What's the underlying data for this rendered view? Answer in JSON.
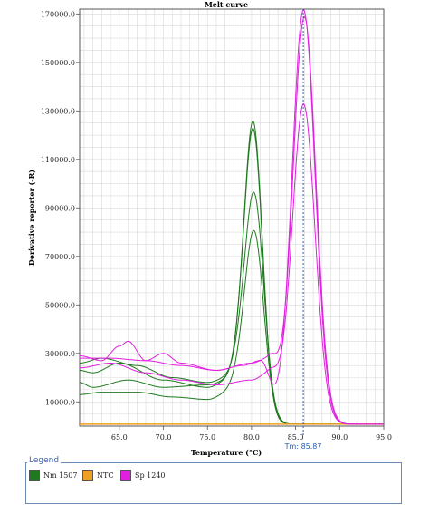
{
  "chart_data": {
    "type": "line",
    "title": "Melt curve",
    "xlabel": "Temperature (°C)",
    "ylabel": "Derivative reporter (-R)",
    "xlim": [
      60.5,
      95.0
    ],
    "ylim": [
      0,
      172000
    ],
    "xticks": [
      "65.0",
      "70.0",
      "75.0",
      "80.0",
      "85.0",
      "90.0",
      "95.0"
    ],
    "yticks": [
      "10000.0",
      "30000.0",
      "50000.0",
      "70000.0",
      "90000.0",
      "110000.0",
      "130000.0",
      "150000.0",
      "170000.0"
    ],
    "grid": true,
    "tm_marker": {
      "x": 85.87,
      "label": "Tm: 85.87"
    },
    "series": [
      {
        "name": "Nm 1507",
        "color": "#1f7a1f",
        "curves": [
          {
            "peak": 122000,
            "center": 80.2,
            "width": 1.05,
            "base": [
              [
                60.5,
                18000
              ],
              [
                62,
                16000
              ],
              [
                66,
                19000
              ],
              [
                70,
                16000
              ],
              [
                75,
                17000
              ],
              [
                78,
                20000
              ]
            ]
          },
          {
            "peak": 119000,
            "center": 80.2,
            "width": 1.05,
            "base": [
              [
                60.5,
                23000
              ],
              [
                62,
                22000
              ],
              [
                65,
                26000
              ],
              [
                70,
                19000
              ],
              [
                75,
                16000
              ],
              [
                78,
                20000
              ]
            ]
          },
          {
            "peak": 93000,
            "center": 80.3,
            "width": 1.1,
            "base": [
              [
                60.5,
                26000
              ],
              [
                63,
                28000
              ],
              [
                67,
                25000
              ],
              [
                71,
                20000
              ],
              [
                75,
                18000
              ],
              [
                78,
                21000
              ]
            ]
          },
          {
            "peak": 78000,
            "center": 80.3,
            "width": 1.1,
            "base": [
              [
                60.5,
                13000
              ],
              [
                63,
                14000
              ],
              [
                67,
                14000
              ],
              [
                71,
                12000
              ],
              [
                75,
                11000
              ],
              [
                78,
                15000
              ]
            ]
          }
        ]
      },
      {
        "name": "NTC",
        "color": "#f0a020",
        "curves": [
          {
            "peak": 0,
            "center": 80.0,
            "width": 1.0,
            "base": [
              [
                60.5,
                800
              ],
              [
                95,
                800
              ]
            ]
          }
        ]
      },
      {
        "name": "Sp 1240",
        "color": "#e020e0",
        "curves": [
          {
            "peak": 171000,
            "center": 85.9,
            "width": 1.3,
            "base": [
              [
                60.5,
                29000
              ],
              [
                63,
                27000
              ],
              [
                65,
                33000
              ],
              [
                66,
                35000
              ],
              [
                68,
                27000
              ],
              [
                70,
                30000
              ],
              [
                72,
                26000
              ],
              [
                76,
                23000
              ],
              [
                79,
                25000
              ],
              [
                81,
                27000
              ]
            ]
          },
          {
            "peak": 168000,
            "center": 86.0,
            "width": 1.3,
            "base": [
              [
                60.5,
                28000
              ],
              [
                64,
                28000
              ],
              [
                68,
                27000
              ],
              [
                72,
                25000
              ],
              [
                76,
                23000
              ],
              [
                80,
                26000
              ],
              [
                82,
                28000
              ]
            ]
          },
          {
            "peak": 132000,
            "center": 85.9,
            "width": 1.3,
            "base": [
              [
                60.5,
                24000
              ],
              [
                64,
                26000
              ],
              [
                68,
                22000
              ],
              [
                72,
                19000
              ],
              [
                76,
                17000
              ],
              [
                80,
                19000
              ],
              [
                82,
                22000
              ]
            ]
          }
        ]
      }
    ]
  },
  "legend": {
    "title": "Legend",
    "items": [
      {
        "label": "Nm 1507",
        "color": "#1f7a1f"
      },
      {
        "label": "NTC",
        "color": "#f0a020"
      },
      {
        "label": "Sp 1240",
        "color": "#e020e0"
      }
    ]
  }
}
